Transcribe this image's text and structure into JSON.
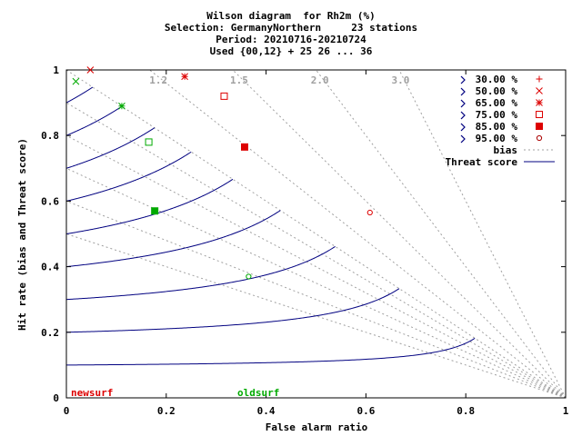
{
  "chart_data": {
    "type": "scatter",
    "title": "Wilson diagram  for Rh2m (%)",
    "subtitle_lines": [
      "Selection: GermanyNorthern     23 stations",
      "Period: 20210716-20210724",
      "Used {00,12} + 25 26 ... 36"
    ],
    "xlabel": "False alarm ratio",
    "ylabel": "Hit rate (bias and Threat score)",
    "xlim": [
      0,
      1
    ],
    "ylim": [
      0,
      1
    ],
    "x_ticks": [
      "0",
      "0.2",
      "0.4",
      "0.6",
      "0.8",
      "1"
    ],
    "y_ticks": [
      "0",
      "0.2",
      "0.4",
      "0.6",
      "0.8",
      "1"
    ],
    "bias_values": [
      0.5,
      0.6,
      0.7,
      0.8,
      0.9,
      1.0,
      1.2,
      1.5,
      2.0,
      3.0
    ],
    "bias_labels": [
      {
        "value": 1.2,
        "text": "1.2"
      },
      {
        "value": 1.5,
        "text": "1.5"
      },
      {
        "value": 2.0,
        "text": "2.0"
      },
      {
        "value": 3.0,
        "text": "3.0"
      }
    ],
    "threat_scores": [
      0.1,
      0.2,
      0.3,
      0.4,
      0.5,
      0.6,
      0.7,
      0.8,
      0.9
    ],
    "legend": {
      "placement": "top-right",
      "entries": [
        {
          "label": "30.00 %",
          "marker": "plus",
          "color": "#dd0000"
        },
        {
          "label": "50.00 %",
          "marker": "x",
          "color": "#dd0000"
        },
        {
          "label": "65.00 %",
          "marker": "star",
          "color": "#dd0000"
        },
        {
          "label": "75.00 %",
          "marker": "open-square",
          "color": "#dd0000"
        },
        {
          "label": "85.00 %",
          "marker": "filled-square",
          "color": "#dd0000"
        },
        {
          "label": "95.00 %",
          "marker": "open-circle",
          "color": "#aa0000"
        }
      ],
      "bias_label": "bias",
      "threat_label": "Threat score"
    },
    "series": [
      {
        "name": "newsurf",
        "color": "#dd0000",
        "points": [
          {
            "x": 0.048,
            "y": 1.0,
            "marker": "x"
          },
          {
            "x": 0.237,
            "y": 0.98,
            "marker": "star"
          },
          {
            "x": 0.316,
            "y": 0.92,
            "marker": "open-square"
          },
          {
            "x": 0.357,
            "y": 0.765,
            "marker": "filled-square"
          },
          {
            "x": 0.608,
            "y": 0.565,
            "marker": "open-circle"
          }
        ]
      },
      {
        "name": "oldsurf",
        "color": "#00aa00",
        "points": [
          {
            "x": 0.019,
            "y": 0.965,
            "marker": "x"
          },
          {
            "x": 0.111,
            "y": 0.89,
            "marker": "star"
          },
          {
            "x": 0.165,
            "y": 0.78,
            "marker": "open-square"
          },
          {
            "x": 0.177,
            "y": 0.57,
            "marker": "filled-square"
          },
          {
            "x": 0.365,
            "y": 0.37,
            "marker": "open-circle"
          }
        ]
      }
    ],
    "colors": {
      "threat_line": "#000080",
      "bias_line": "#a0a0a0",
      "bias_label": "#a0a0a0",
      "axis": "#000000"
    }
  }
}
